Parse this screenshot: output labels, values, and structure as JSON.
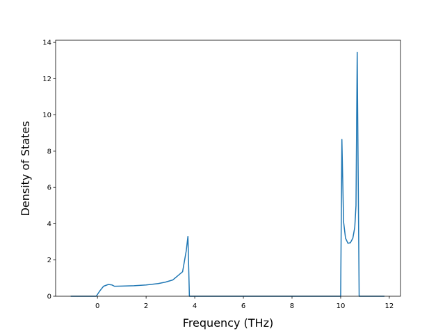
{
  "chart_data": {
    "type": "line",
    "xlabel": "Frequency (THz)",
    "ylabel": "Density of States",
    "x": [
      -1.1,
      -0.05,
      0.1,
      0.25,
      0.45,
      0.6,
      0.7,
      1.0,
      1.5,
      2.0,
      2.5,
      2.8,
      3.1,
      3.5,
      3.65,
      3.72,
      3.78,
      10.0,
      10.05,
      10.12,
      10.2,
      10.3,
      10.4,
      10.5,
      10.58,
      10.63,
      10.68,
      10.76,
      11.8
    ],
    "series": [
      {
        "color": "#1f77b4",
        "values": [
          0,
          0,
          0.3,
          0.55,
          0.65,
          0.62,
          0.55,
          0.56,
          0.58,
          0.62,
          0.7,
          0.78,
          0.9,
          1.35,
          2.5,
          3.3,
          0,
          0,
          8.65,
          4.1,
          3.2,
          2.92,
          2.95,
          3.2,
          3.8,
          5.0,
          13.45,
          0,
          0
        ]
      }
    ],
    "xlim": [
      -1.72,
      12.46
    ],
    "ylim": [
      0,
      14.12
    ],
    "xticks": [
      0,
      2,
      4,
      6,
      8,
      10,
      12
    ],
    "yticks": [
      0,
      2,
      4,
      6,
      8,
      10,
      12,
      14
    ],
    "grid": false
  }
}
